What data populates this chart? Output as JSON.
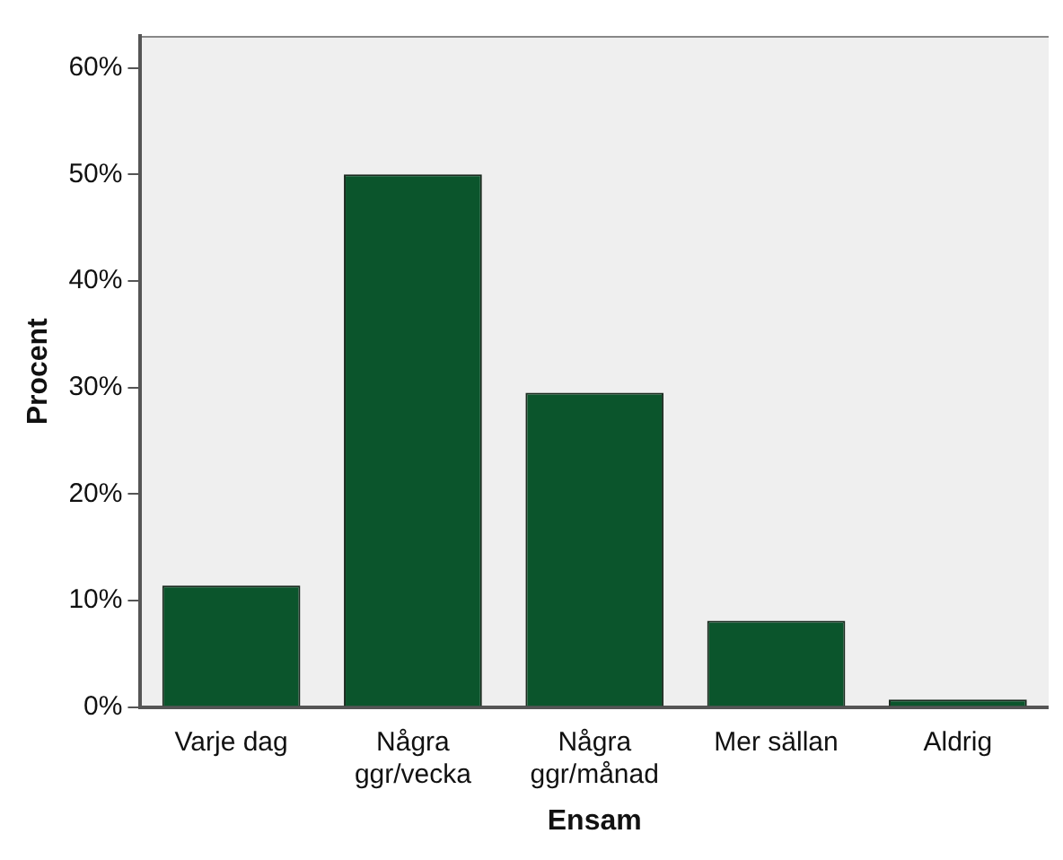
{
  "chart_data": {
    "type": "bar",
    "xlabel": "Ensam",
    "ylabel": "Procent",
    "categories": [
      "Varje dag",
      "Några\nggr/vecka",
      "Några\nggr/månad",
      "Mer sällan",
      "Aldrig"
    ],
    "values": [
      11.4,
      50.0,
      29.5,
      8.1,
      0.7
    ],
    "color": "#0b552c",
    "ylim": [
      0,
      63
    ],
    "yticks": [
      {
        "value": 0,
        "label": "0%"
      },
      {
        "value": 10,
        "label": "10%"
      },
      {
        "value": 20,
        "label": "20%"
      },
      {
        "value": 30,
        "label": "30%"
      },
      {
        "value": 40,
        "label": "40%"
      },
      {
        "value": 50,
        "label": "50%"
      },
      {
        "value": 60,
        "label": "60%"
      }
    ],
    "grid": false,
    "legend": false
  }
}
